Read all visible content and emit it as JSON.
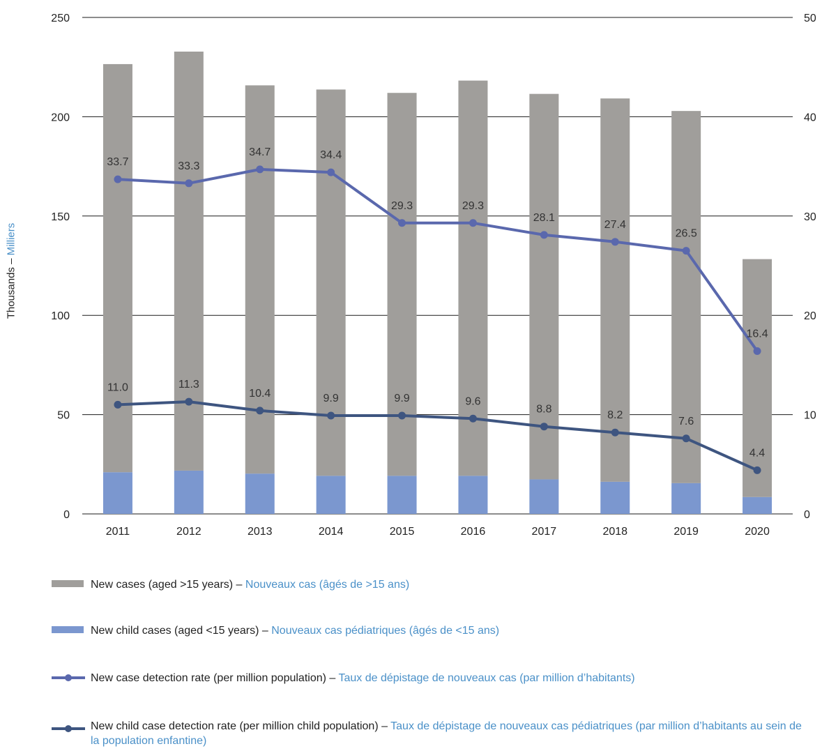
{
  "chart_data": {
    "type": "bar",
    "categories": [
      "2011",
      "2012",
      "2013",
      "2014",
      "2015",
      "2016",
      "2017",
      "2018",
      "2019",
      "2020"
    ],
    "series": [
      {
        "name_en": "New cases (aged >15 years)",
        "name_fr": "Nouveaux cas (âgés de >15 ans)",
        "kind": "stacked-bar",
        "axis": "left",
        "values": [
          205.5,
          211.0,
          195.5,
          194.5,
          192.8,
          199.0,
          194.1,
          193.0,
          187.4,
          119.8
        ],
        "color": "#a09e9b"
      },
      {
        "name_en": "New child cases (aged <15 years)",
        "name_fr": "Nouveaux cas pédiatriques (âgés de <15 ans)",
        "kind": "stacked-bar",
        "axis": "left",
        "values": [
          21.0,
          21.8,
          20.3,
          19.2,
          19.2,
          19.2,
          17.4,
          16.2,
          15.5,
          8.5
        ],
        "color": "#7b97cf"
      },
      {
        "name_en": "New case detection rate (per million population)",
        "name_fr": "Taux de dépistage de nouveaux cas (par million d'habitants)",
        "kind": "line",
        "axis": "right",
        "values": [
          33.7,
          33.3,
          34.7,
          34.4,
          29.3,
          29.3,
          28.1,
          27.4,
          26.5,
          16.4
        ],
        "labels": [
          "33.7",
          "33.3",
          "34.7",
          "34.4",
          "29.3",
          "29.3",
          "28.1",
          "27.4",
          "26.5",
          "16.4"
        ],
        "color": "#5a68ad"
      },
      {
        "name_en": "New child case detection rate (per million child population)",
        "name_fr": "Taux de dépistage de nouveaux cas pédiatriques (par million d'habitants au sein de la population enfantine)",
        "kind": "line",
        "axis": "right",
        "values": [
          11.0,
          11.3,
          10.4,
          9.9,
          9.9,
          9.6,
          8.8,
          8.2,
          7.6,
          4.4
        ],
        "labels": [
          "11.0",
          "11.3",
          "10.4",
          "9.9",
          "9.9",
          "9.6",
          "8.8",
          "8.2",
          "7.6",
          "4.4"
        ],
        "color": "#3e5580"
      }
    ],
    "left_axis": {
      "ticks": [
        "0",
        "50",
        "100",
        "150",
        "200",
        "250"
      ],
      "range": [
        0,
        250
      ]
    },
    "right_axis": {
      "ticks": [
        "0",
        "10",
        "20",
        "30",
        "40",
        "50"
      ],
      "range": [
        0,
        50
      ]
    },
    "ylabel_en": "Thousands",
    "ylabel_sep": " – ",
    "ylabel_fr": "Milliers",
    "grid": true,
    "legend_position": "bottom"
  },
  "legend": [
    {
      "en": "New cases (aged >15 years)",
      "sep": " – ",
      "fr": "Nouveaux cas (âgés de >15 ans)"
    },
    {
      "en": "New child cases (aged <15 years)",
      "sep": " – ",
      "fr": "Nouveaux cas pédiatriques (âgés de <15 ans)"
    },
    {
      "en": "New case detection rate (per million population)",
      "sep": " – ",
      "fr": "Taux de dépistage de nouveaux cas (par million d’habitants)"
    },
    {
      "en": "New child case detection rate (per million child population)",
      "sep": " – ",
      "fr": "Taux de dépistage de nouveaux cas pédiatriques (par million d’habitants au sein de la population enfantine)"
    }
  ]
}
